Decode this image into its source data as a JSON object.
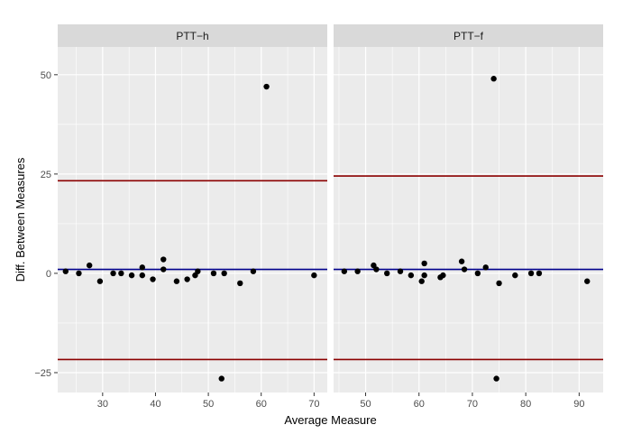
{
  "chart_data": {
    "type": "scatter",
    "xlabel": "Average Measure",
    "ylabel": "Diff. Between Measures",
    "ylim": [
      -30,
      57
    ],
    "yticks": [
      -25,
      0,
      25,
      50
    ],
    "grid": true,
    "colors": {
      "panel_bg": "#ebebeb",
      "strip_bg": "#d9d9d9",
      "grid": "#ffffff",
      "points": "#000000",
      "limits_line": "#8b0000",
      "mean_line": "#00008b"
    },
    "panels": [
      {
        "strip": "PTT−h",
        "xlim": [
          21.5,
          72.5
        ],
        "xticks": [
          30,
          40,
          50,
          60,
          70
        ],
        "mean_diff": 1,
        "upper_limit": 23.3,
        "lower_limit": -21.7,
        "points": [
          [
            23,
            0.5
          ],
          [
            25.5,
            0
          ],
          [
            27.5,
            2
          ],
          [
            29.5,
            -2
          ],
          [
            32,
            0
          ],
          [
            33.5,
            0
          ],
          [
            35.5,
            -0.5
          ],
          [
            37.5,
            1.5
          ],
          [
            37.5,
            -0.5
          ],
          [
            39.5,
            -1.5
          ],
          [
            41.5,
            3.5
          ],
          [
            41.5,
            1
          ],
          [
            44,
            -2
          ],
          [
            46,
            -1.5
          ],
          [
            47.5,
            -0.5
          ],
          [
            48,
            0.5
          ],
          [
            51,
            0
          ],
          [
            52.5,
            -26.5
          ],
          [
            53,
            0
          ],
          [
            56,
            -2.5
          ],
          [
            58.5,
            0.5
          ],
          [
            61,
            47
          ],
          [
            70,
            -0.5
          ]
        ]
      },
      {
        "strip": "PTT−f",
        "xlim": [
          44,
          94.5
        ],
        "xticks": [
          50,
          60,
          70,
          80,
          90
        ],
        "mean_diff": 1,
        "upper_limit": 24.5,
        "lower_limit": -21.7,
        "points": [
          [
            46,
            0.5
          ],
          [
            48.5,
            0.5
          ],
          [
            51.5,
            2
          ],
          [
            52,
            1
          ],
          [
            54,
            0
          ],
          [
            56.5,
            0.5
          ],
          [
            58.5,
            -0.5
          ],
          [
            60.5,
            -2
          ],
          [
            61,
            2.5
          ],
          [
            61,
            -0.5
          ],
          [
            64,
            -1
          ],
          [
            64.5,
            -0.5
          ],
          [
            68,
            3
          ],
          [
            68.5,
            1
          ],
          [
            71,
            0
          ],
          [
            72.5,
            1.5
          ],
          [
            74,
            49
          ],
          [
            74.5,
            -26.5
          ],
          [
            75,
            -2.5
          ],
          [
            78,
            -0.5
          ],
          [
            81,
            0
          ],
          [
            82.5,
            0
          ],
          [
            91.5,
            -2
          ]
        ]
      }
    ]
  }
}
